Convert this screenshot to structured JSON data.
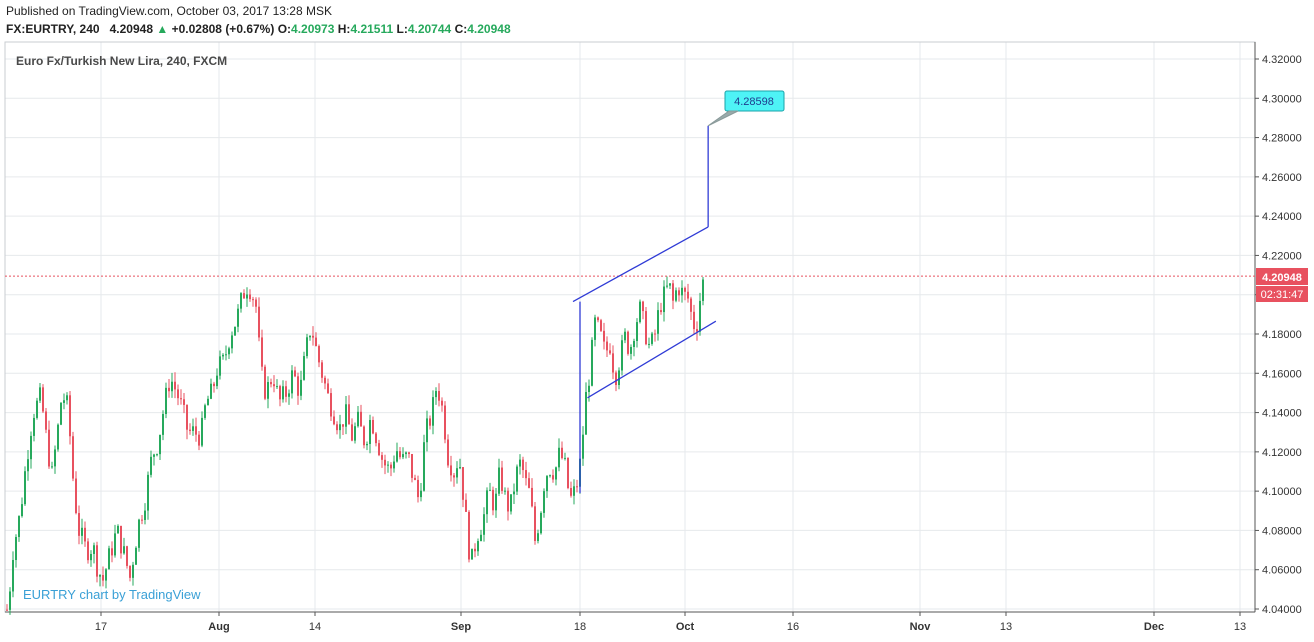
{
  "header": {
    "published": "Published on TradingView.com, October 03, 2017 13:28 MSK",
    "symbol": "FX:EURTRY, 240",
    "last": "4.20948",
    "arrow": "▲",
    "change": "+0.02808 (+0.67%)",
    "o_label": "O:",
    "o": "4.20973",
    "h_label": "H:",
    "h": "4.21511",
    "l_label": "L:",
    "l": "4.20744",
    "c_label": "C:",
    "c": "4.20948"
  },
  "chart_data": {
    "type": "candlestick",
    "title": "Euro Fx/Turkish New Lira, 240, FXCM",
    "watermark": "EURTRY chart by TradingView",
    "x_ticks": [
      "17",
      "Aug",
      "14",
      "Sep",
      "18",
      "Oct",
      "16",
      "Nov",
      "13",
      "Dec",
      "13"
    ],
    "y_ticks": [
      "4.32000",
      "4.30000",
      "4.28000",
      "4.26000",
      "4.24000",
      "4.22000",
      "4.20000",
      "4.18000",
      "4.16000",
      "4.14000",
      "4.12000",
      "4.10000",
      "4.08000",
      "4.06000",
      "4.04000"
    ],
    "ylim": [
      4.036,
      4.325
    ],
    "last_price_label": "4.20948",
    "countdown_label": "02:31:47",
    "last_price": 4.20948,
    "target_label": "4.28598",
    "target_price": 4.28598,
    "colors": {
      "up": "#26a95c",
      "down": "#e8515f",
      "drawing": "#2f3bd6",
      "callout": "#4ef3f6",
      "last_line": "#e8515f"
    },
    "close_path": [
      [
        0,
        4.04
      ],
      [
        5,
        4.039
      ],
      [
        8,
        4.04
      ],
      [
        13,
        4.07
      ],
      [
        20,
        4.088
      ],
      [
        27,
        4.118
      ],
      [
        33,
        4.14
      ],
      [
        41,
        4.148
      ],
      [
        47,
        4.124
      ],
      [
        52,
        4.108
      ],
      [
        58,
        4.132
      ],
      [
        62,
        4.15
      ],
      [
        68,
        4.142
      ],
      [
        74,
        4.1
      ],
      [
        79,
        4.08
      ],
      [
        86,
        4.07
      ],
      [
        93,
        4.072
      ],
      [
        98,
        4.06
      ],
      [
        103,
        4.055
      ],
      [
        110,
        4.068
      ],
      [
        117,
        4.08
      ],
      [
        123,
        4.07
      ],
      [
        130,
        4.056
      ],
      [
        138,
        4.082
      ],
      [
        145,
        4.096
      ],
      [
        152,
        4.118
      ],
      [
        158,
        4.125
      ],
      [
        163,
        4.14
      ],
      [
        170,
        4.158
      ],
      [
        177,
        4.15
      ],
      [
        183,
        4.14
      ],
      [
        188,
        4.13
      ],
      [
        194,
        4.13
      ],
      [
        201,
        4.128
      ],
      [
        206,
        4.145
      ],
      [
        212,
        4.15
      ],
      [
        217,
        4.162
      ],
      [
        224,
        4.166
      ],
      [
        230,
        4.18
      ],
      [
        237,
        4.188
      ],
      [
        241,
        4.196
      ],
      [
        246,
        4.205
      ],
      [
        251,
        4.203
      ],
      [
        256,
        4.194
      ],
      [
        261,
        4.16
      ],
      [
        266,
        4.15
      ],
      [
        273,
        4.16
      ],
      [
        279,
        4.145
      ],
      [
        286,
        4.15
      ],
      [
        293,
        4.16
      ],
      [
        300,
        4.15
      ],
      [
        305,
        4.168
      ],
      [
        311,
        4.185
      ],
      [
        317,
        4.17
      ],
      [
        322,
        4.16
      ],
      [
        328,
        4.148
      ],
      [
        334,
        4.14
      ],
      [
        340,
        4.132
      ],
      [
        345,
        4.14
      ],
      [
        352,
        4.128
      ],
      [
        358,
        4.135
      ],
      [
        365,
        4.125
      ],
      [
        371,
        4.138
      ],
      [
        378,
        4.125
      ],
      [
        383,
        4.115
      ],
      [
        390,
        4.11
      ],
      [
        396,
        4.122
      ],
      [
        402,
        4.115
      ],
      [
        408,
        4.118
      ],
      [
        414,
        4.105
      ],
      [
        419,
        4.095
      ],
      [
        425,
        4.128
      ],
      [
        432,
        4.14
      ],
      [
        437,
        4.155
      ],
      [
        443,
        4.14
      ],
      [
        448,
        4.118
      ],
      [
        454,
        4.11
      ],
      [
        459,
        4.118
      ],
      [
        463,
        4.1
      ],
      [
        467,
        4.08
      ],
      [
        471,
        4.062
      ],
      [
        477,
        4.078
      ],
      [
        483,
        4.085
      ],
      [
        489,
        4.1
      ],
      [
        495,
        4.092
      ],
      [
        500,
        4.11
      ],
      [
        504,
        4.098
      ],
      [
        510,
        4.09
      ],
      [
        516,
        4.108
      ],
      [
        521,
        4.115
      ],
      [
        525,
        4.105
      ],
      [
        530,
        4.098
      ],
      [
        535,
        4.075
      ],
      [
        540,
        4.088
      ],
      [
        545,
        4.108
      ],
      [
        550,
        4.112
      ],
      [
        555,
        4.11
      ],
      [
        560,
        4.12
      ],
      [
        565,
        4.112
      ],
      [
        570,
        4.095
      ],
      [
        575,
        4.1
      ],
      [
        579,
        4.108
      ],
      [
        583,
        4.13
      ],
      [
        586,
        4.148
      ],
      [
        590,
        4.162
      ],
      [
        595,
        4.185
      ],
      [
        600,
        4.18
      ],
      [
        605,
        4.17
      ],
      [
        610,
        4.175
      ],
      [
        615,
        4.158
      ],
      [
        620,
        4.168
      ],
      [
        625,
        4.178
      ],
      [
        630,
        4.172
      ],
      [
        635,
        4.185
      ],
      [
        640,
        4.192
      ],
      [
        645,
        4.182
      ],
      [
        650,
        4.172
      ],
      [
        655,
        4.18
      ],
      [
        660,
        4.195
      ],
      [
        665,
        4.2
      ],
      [
        669,
        4.205
      ],
      [
        673,
        4.196
      ],
      [
        678,
        4.205
      ],
      [
        683,
        4.2
      ],
      [
        688,
        4.198
      ],
      [
        692,
        4.188
      ],
      [
        696,
        4.182
      ],
      [
        700,
        4.198
      ],
      [
        704,
        4.209
      ]
    ],
    "channel": {
      "upper": [
        [
          "2017-09-17",
          4.1965
        ],
        [
          "2017-10-05",
          4.2345
        ]
      ],
      "lower": [
        [
          "2017-09-19",
          4.1475
        ],
        [
          "2017-10-06",
          4.1865
        ]
      ],
      "flagpole": [
        [
          "2017-09-18",
          4.1965
        ],
        [
          "2017-09-18",
          4.099
        ]
      ],
      "projection": [
        [
          "2017-10-05",
          4.2345
        ],
        [
          "2017-10-05",
          4.286
        ]
      ]
    }
  }
}
